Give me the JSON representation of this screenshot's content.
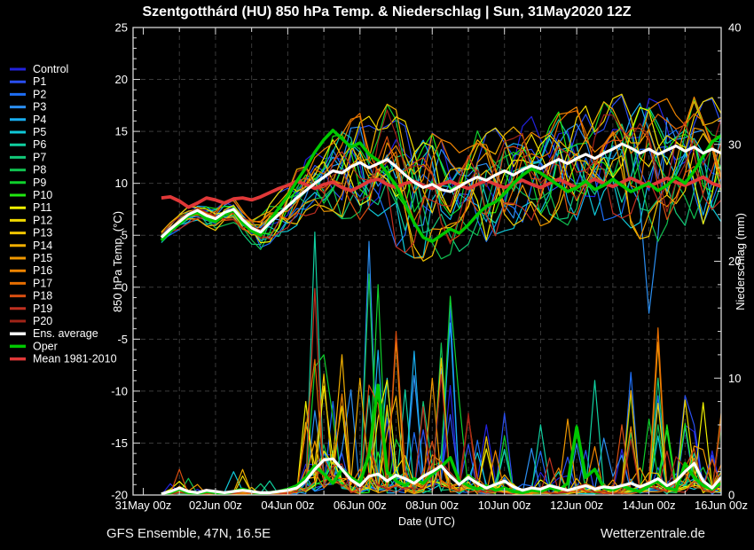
{
  "title": "Szentgotthárd  (HU)  850 hPa Temp. & Niederschlag | Sun, 31May2020 12Z",
  "footer": {
    "left": "GFS Ensemble, 47N, 16.5E",
    "right": "Wetterzentrale.de"
  },
  "colors": {
    "background": "#000000",
    "grid": "#3a3a3a",
    "axis": "#d8d8d8",
    "text": "#ffffff"
  },
  "chart_data": {
    "type": "line",
    "title": "Szentgotthárd  (HU)  850 hPa Temp. & Niederschlag | Sun, 31May2020 12Z",
    "x": {
      "label": "Date (UTC)",
      "tick_labels": [
        "31May 00z",
        "02Jun 00z",
        "04Jun 00z",
        "06Jun 00z",
        "08Jun 00z",
        "10Jun 00z",
        "12Jun 00z",
        "14Jun 00z",
        "16Jun 00z"
      ],
      "tick_days": [
        0,
        2,
        4,
        6,
        8,
        10,
        12,
        14,
        16
      ],
      "start_day": 0.5,
      "step_days": 0.25,
      "n_points": 63
    },
    "y_left": {
      "label": "850 hPa Temp. (°C)",
      "min": -20,
      "max": 25,
      "major_tick": 5,
      "minor_tick": 1
    },
    "y_right": {
      "label": "Niederschlag (mm)",
      "min": 0,
      "max": 40,
      "major_tick": 10,
      "minor_tick": 2
    },
    "legend_note": "grid dashed every 5 °C horizontally and every 1 day vertically",
    "members": [
      {
        "label": "Control",
        "color": "#2222dd"
      },
      {
        "label": "P1",
        "color": "#2a4ff0"
      },
      {
        "label": "P2",
        "color": "#1e6ef5"
      },
      {
        "label": "P3",
        "color": "#2b8ef0"
      },
      {
        "label": "P4",
        "color": "#18aef0"
      },
      {
        "label": "P5",
        "color": "#10c8d8"
      },
      {
        "label": "P6",
        "color": "#10cfa0"
      },
      {
        "label": "P7",
        "color": "#12c878"
      },
      {
        "label": "P8",
        "color": "#10c050"
      },
      {
        "label": "P9",
        "color": "#0fd02c"
      },
      {
        "label": "P10",
        "color": "#20e810"
      },
      {
        "label": "P11",
        "color": "#f0f000"
      },
      {
        "label": "P12",
        "color": "#f0d800"
      },
      {
        "label": "P13",
        "color": "#f0c400"
      },
      {
        "label": "P14",
        "color": "#f0ae00"
      },
      {
        "label": "P15",
        "color": "#f09800"
      },
      {
        "label": "P16",
        "color": "#ee8400"
      },
      {
        "label": "P17",
        "color": "#e66d00"
      },
      {
        "label": "P18",
        "color": "#d84e10"
      },
      {
        "label": "P19",
        "color": "#c03020"
      },
      {
        "label": "P20",
        "color": "#a02418"
      }
    ],
    "main_series": {
      "ens_average": {
        "label": "Ens. average",
        "color": "#ffffff",
        "temp": [
          4.8,
          5.6,
          6.3,
          7.0,
          7.4,
          6.9,
          6.6,
          7.2,
          7.5,
          6.5,
          5.7,
          5.3,
          6.2,
          7.0,
          7.8,
          8.6,
          9.3,
          10.0,
          10.6,
          11.2,
          11.0,
          11.6,
          12.0,
          11.5,
          11.9,
          12.3,
          11.6,
          10.8,
          10.1,
          9.6,
          9.9,
          9.4,
          9.2,
          9.7,
          10.2,
          10.6,
          10.3,
          10.8,
          11.2,
          10.8,
          11.3,
          11.7,
          11.4,
          11.9,
          12.3,
          11.9,
          12.4,
          12.8,
          12.4,
          12.9,
          13.3,
          13.8,
          13.4,
          12.9,
          13.3,
          12.8,
          13.2,
          13.6,
          13.1,
          13.5,
          12.9,
          13.3,
          12.9
        ],
        "precip": [
          0.1,
          0.3,
          0.6,
          0.3,
          0.2,
          0.4,
          0.3,
          0.2,
          0.3,
          0.4,
          0.3,
          0.2,
          0.2,
          0.3,
          0.4,
          0.6,
          1.2,
          2.2,
          3.0,
          3.1,
          2.2,
          1.3,
          0.8,
          1.6,
          1.8,
          1.2,
          1.7,
          1.4,
          1.0,
          1.6,
          2.0,
          2.5,
          1.6,
          0.9,
          1.5,
          1.0,
          0.6,
          0.9,
          1.2,
          0.7,
          0.4,
          0.6,
          0.5,
          0.8,
          0.6,
          0.4,
          0.6,
          0.8,
          0.5,
          0.7,
          0.6,
          0.8,
          1.0,
          0.7,
          1.0,
          1.4,
          0.8,
          1.2,
          2.0,
          2.7,
          1.2,
          0.6,
          1.5
        ]
      },
      "oper": {
        "label": "Oper",
        "color": "#00c800",
        "temp": [
          4.5,
          5.4,
          6.1,
          6.9,
          7.2,
          6.6,
          6.3,
          7.0,
          7.4,
          6.2,
          5.4,
          5.0,
          6.4,
          7.6,
          8.8,
          10.2,
          11.5,
          13.0,
          14.2,
          15.1,
          14.3,
          13.5,
          13.9,
          12.8,
          12.2,
          11.0,
          9.8,
          8.0,
          6.2,
          4.8,
          4.4,
          5.0,
          5.6,
          5.2,
          6.0,
          7.0,
          7.8,
          8.2,
          9.0,
          10.0,
          10.8,
          11.4,
          11.0,
          10.4,
          9.8,
          9.2,
          9.6,
          10.2,
          9.4,
          9.8,
          10.4,
          9.8,
          9.2,
          9.6,
          10.0,
          9.3,
          9.8,
          10.6,
          10.0,
          11.2,
          12.6,
          14.0,
          14.6
        ],
        "precip": [
          0.0,
          0.2,
          0.5,
          0.2,
          0.1,
          0.3,
          0.2,
          0.1,
          0.3,
          0.5,
          0.3,
          0.1,
          0.2,
          0.3,
          0.5,
          0.8,
          1.5,
          2.5,
          1.8,
          1.0,
          2.2,
          1.5,
          1.0,
          3.5,
          9.4,
          2.0,
          1.2,
          0.8,
          1.4,
          1.0,
          1.8,
          2.4,
          3.2,
          1.2,
          0.8,
          0.5,
          0.8,
          0.4,
          0.6,
          0.3,
          0.2,
          0.4,
          0.3,
          0.6,
          0.4,
          1.0,
          5.8,
          1.5,
          2.2,
          0.6,
          0.4,
          0.8,
          0.5,
          0.3,
          0.8,
          1.2,
          0.6,
          0.4,
          2.7,
          1.5,
          0.8,
          0.5,
          1.0
        ]
      },
      "climate_mean": {
        "label": "Mean 1981-2010",
        "color": "#e03838",
        "temp": [
          8.6,
          8.7,
          8.3,
          7.7,
          8.1,
          8.6,
          8.4,
          8.1,
          8.5,
          8.6,
          8.4,
          8.7,
          9.1,
          9.5,
          9.8,
          10.2,
          9.9,
          9.5,
          9.9,
          10.1,
          9.6,
          9.3,
          9.7,
          10.2,
          10.4,
          9.9,
          9.6,
          10.0,
          10.2,
          9.8,
          9.5,
          9.9,
          10.2,
          9.8,
          9.5,
          9.9,
          10.3,
          9.9,
          9.6,
          10.0,
          10.3,
          9.9,
          9.6,
          10.0,
          10.4,
          10.0,
          9.6,
          10.0,
          10.4,
          10.0,
          9.7,
          10.1,
          10.5,
          10.1,
          9.7,
          10.1,
          10.5,
          10.1,
          9.8,
          10.2,
          10.6,
          10.0,
          9.7
        ]
      }
    },
    "ensemble_envelope": {
      "temp_spread_up_knots": [
        [
          0,
          0.5
        ],
        [
          8,
          1.0
        ],
        [
          12,
          1.6
        ],
        [
          16,
          2.8
        ],
        [
          20,
          4.0
        ],
        [
          26,
          5.0
        ],
        [
          34,
          4.0
        ],
        [
          46,
          4.5
        ],
        [
          62,
          4.5
        ]
      ],
      "temp_spread_down_knots": [
        [
          0,
          0.5
        ],
        [
          8,
          1.2
        ],
        [
          12,
          1.8
        ],
        [
          18,
          3.0
        ],
        [
          22,
          5.0
        ],
        [
          26,
          7.0
        ],
        [
          34,
          5.5
        ],
        [
          42,
          5.0
        ],
        [
          50,
          6.0
        ],
        [
          54,
          8.0
        ],
        [
          58,
          6.5
        ],
        [
          62,
          6.0
        ]
      ],
      "precip_max": [
        0.5,
        1.5,
        3.0,
        1.5,
        1.0,
        2.0,
        1.5,
        1.0,
        2.0,
        2.5,
        2.0,
        1.0,
        1.5,
        2.0,
        3.0,
        5.0,
        8.0,
        22.5,
        12.0,
        8.0,
        12.0,
        9.0,
        10.0,
        21.7,
        18.0,
        10.0,
        14.0,
        9.0,
        12.3,
        8.0,
        10.0,
        13.0,
        17.0,
        8.0,
        7.0,
        5.0,
        6.0,
        4.0,
        7.0,
        5.0,
        3.0,
        4.0,
        6.0,
        3.5,
        5.0,
        6.5,
        6.0,
        4.0,
        9.8,
        5.0,
        4.0,
        6.0,
        10.5,
        5.0,
        6.5,
        14.3,
        6.0,
        5.0,
        8.5,
        6.0,
        7.9,
        5.0,
        7.0
      ],
      "spike_members": {
        "17": 6,
        "18": 9,
        "20": 14,
        "23": 3,
        "24": 9,
        "26": 18,
        "28": 4,
        "30": 15,
        "32": 9,
        "42": 6,
        "46": 9,
        "48": 6,
        "52": 2,
        "55": 17,
        "58": 1,
        "60": 11,
        "62": 16
      },
      "temp_outlier": {
        "member_index": 3,
        "points": [
          [
            53,
            8.0
          ],
          [
            54,
            -2.5
          ],
          [
            55,
            5.0
          ]
        ]
      }
    }
  }
}
